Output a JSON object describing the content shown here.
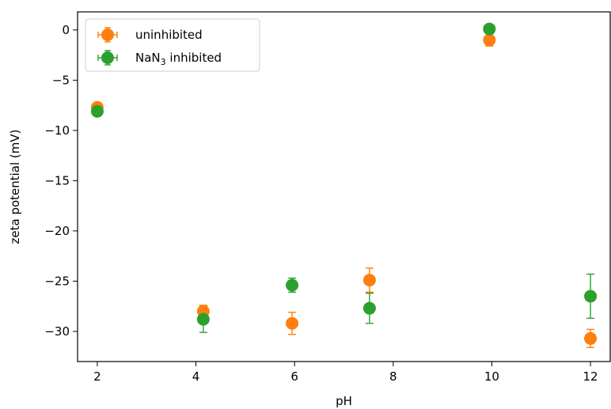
{
  "chart_data": {
    "type": "scatter",
    "xlabel": "pH",
    "ylabel": "zeta potential (mV)",
    "xlim": [
      1.6,
      12.4
    ],
    "ylim": [
      -33,
      1.8
    ],
    "xticks": [
      2,
      4,
      6,
      8,
      10,
      12
    ],
    "yticks": [
      0,
      -5,
      -10,
      -15,
      -20,
      -25,
      -30
    ],
    "xtick_labels": [
      "2",
      "4",
      "6",
      "8",
      "10",
      "12"
    ],
    "ytick_labels": [
      "0",
      "−5",
      "−10",
      "−15",
      "−20",
      "−25",
      "−30"
    ],
    "grid": false,
    "legend_position": "top-left",
    "series": [
      {
        "name": "uninhibited",
        "color": "#ff7f0e",
        "x": [
          2.0,
          4.15,
          5.95,
          7.52,
          9.95,
          12.0
        ],
        "y": [
          -7.7,
          -28.0,
          -29.2,
          -24.9,
          -1.0,
          -30.7
        ],
        "yerr": [
          0.2,
          0.6,
          1.1,
          1.2,
          0.6,
          0.9
        ]
      },
      {
        "name": "NaN3 inhibited",
        "name_parts": {
          "base": "NaN",
          "sub": "3",
          "rest": " inhibited"
        },
        "color": "#2ca02c",
        "x": [
          2.0,
          4.15,
          5.95,
          7.52,
          9.95,
          12.0
        ],
        "y": [
          -8.1,
          -28.8,
          -25.4,
          -27.7,
          0.1,
          -26.5
        ],
        "yerr": [
          0.1,
          1.3,
          0.7,
          1.5,
          0.2,
          2.2
        ]
      }
    ]
  }
}
